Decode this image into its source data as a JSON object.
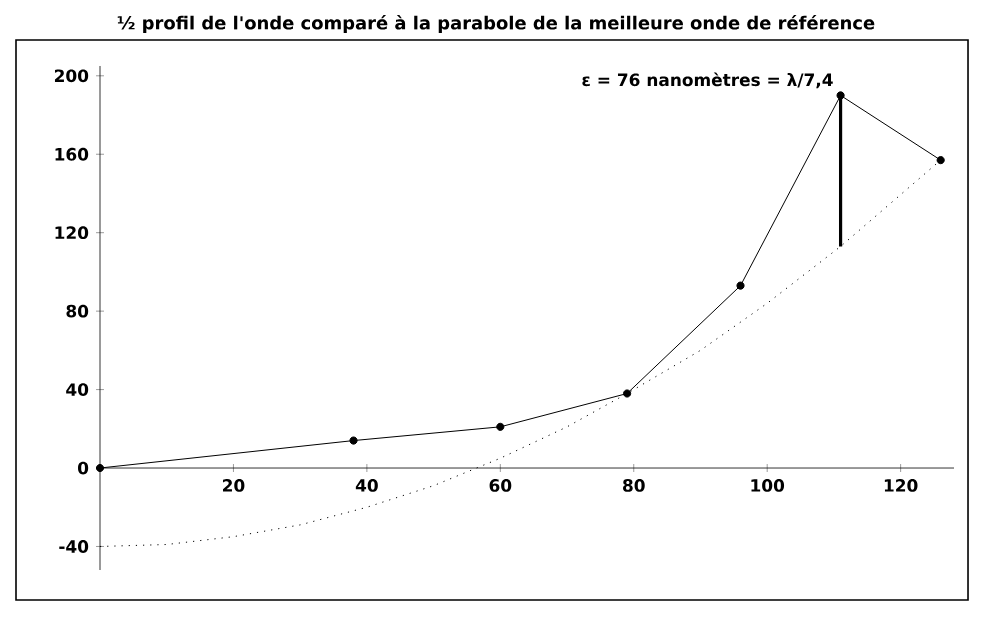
{
  "chart_data": {
    "type": "line",
    "title": "½ profil de l'onde comparé à la parabole de la meilleure onde de référence",
    "annotations": [
      {
        "text": "ε = 76 nanomètres = λ/7,4",
        "x": 111,
        "y": 190
      }
    ],
    "xlim": [
      0,
      128
    ],
    "ylim": [
      -52,
      205
    ],
    "xticks": [
      20,
      40,
      60,
      80,
      100,
      120
    ],
    "yticks": [
      -40,
      0,
      40,
      80,
      120,
      160,
      200
    ],
    "grid": false,
    "series": [
      {
        "color": "#000000",
        "marker": "circle",
        "line_style": "solid",
        "x": [
          0,
          38,
          60,
          79,
          96,
          111,
          126
        ],
        "values": [
          0,
          14,
          21,
          38,
          93,
          190,
          157
        ]
      },
      {
        "color": "#000000",
        "marker": "none",
        "line_style": "dotted",
        "x": [
          0,
          10,
          20,
          30,
          40,
          50,
          60,
          70,
          79,
          90,
          100,
          111,
          126
        ],
        "values": [
          -40,
          -39,
          -35,
          -29,
          -20,
          -9,
          5,
          21,
          38,
          60,
          84,
          113,
          157
        ]
      },
      {
        "color": "#000000",
        "marker": "none",
        "line_style": "solid",
        "x": [
          111,
          111
        ],
        "values": [
          113,
          190
        ]
      }
    ]
  }
}
